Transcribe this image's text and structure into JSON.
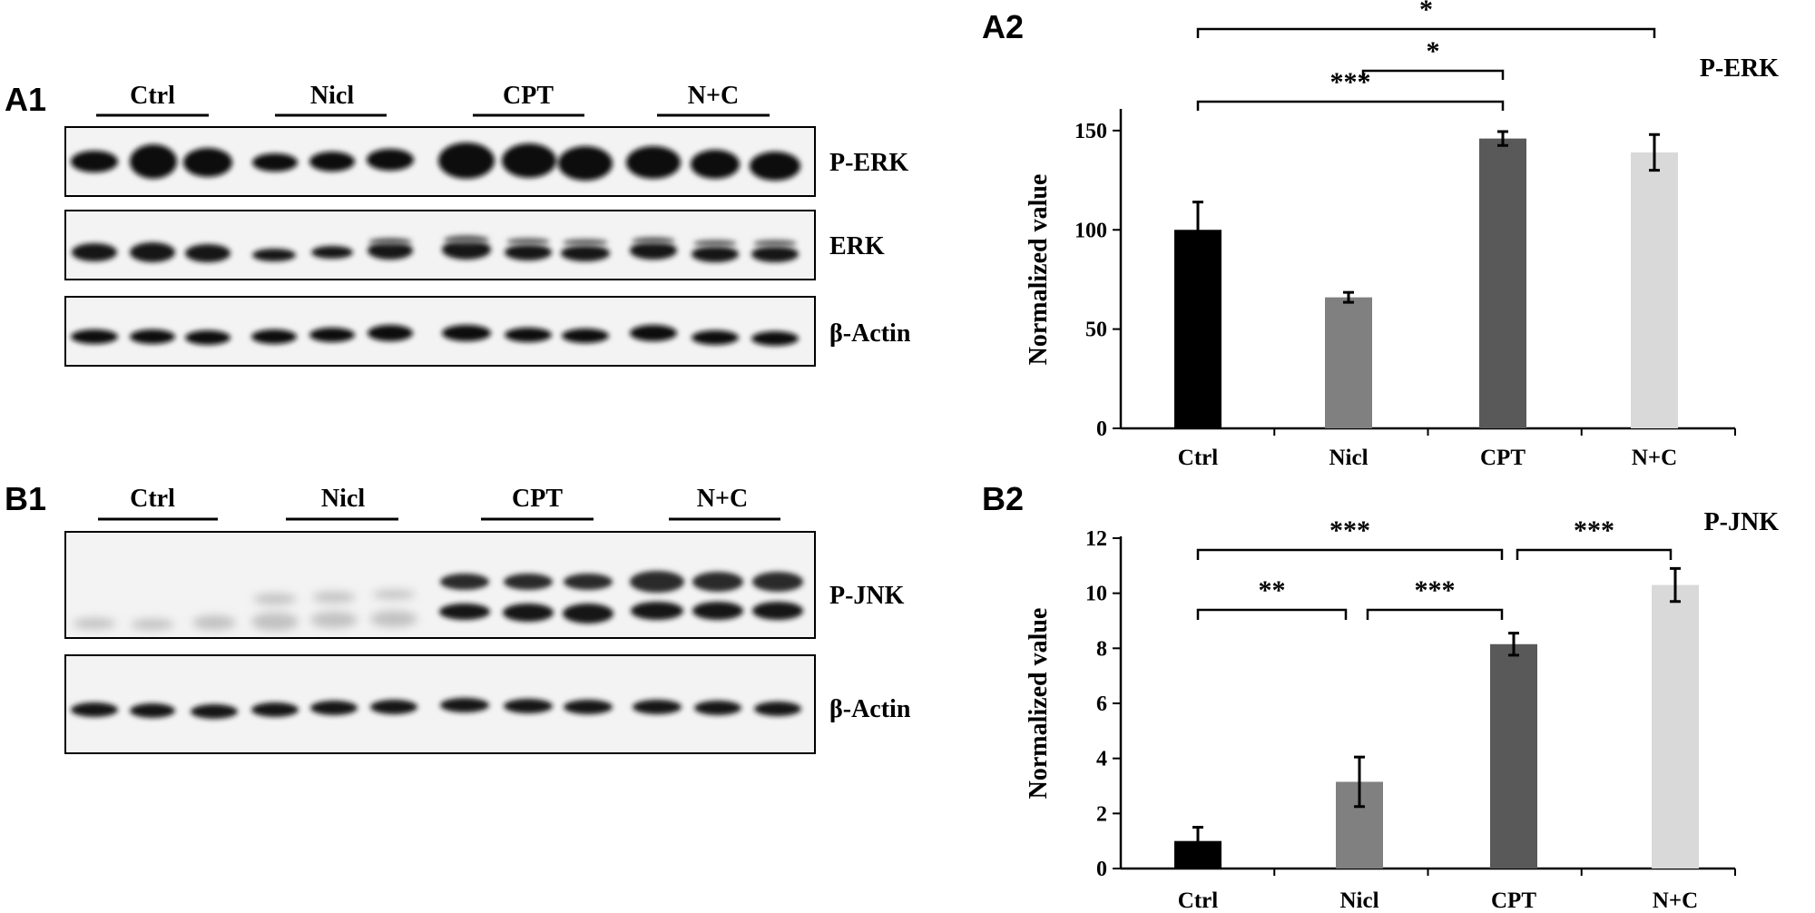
{
  "panels": {
    "a1": "A1",
    "a2": "A2",
    "b1": "B1",
    "b2": "B2"
  },
  "blots": {
    "group_labels": [
      "Ctrl",
      "Nicl",
      "CPT",
      "N+C"
    ],
    "a1_bands": [
      "P-ERK",
      "ERK",
      "β-Actin"
    ],
    "b1_bands": [
      "P-JNK",
      "β-Actin"
    ]
  },
  "colors": {
    "Ctrl": "#000000",
    "Nicl": "#808080",
    "CPT": "#595959",
    "N+C": "#d9d9d9"
  },
  "chart_data": [
    {
      "type": "bar",
      "title": "P-ERK",
      "ylabel": "Normalized value",
      "xlabel": "",
      "categories": [
        "Ctrl",
        "Nicl",
        "CPT",
        "N+C"
      ],
      "values": [
        100,
        66,
        146,
        139
      ],
      "errors": [
        14,
        2.5,
        3.5,
        9
      ],
      "ylim": [
        0,
        160
      ],
      "yticks": [
        0,
        50,
        100,
        150
      ],
      "significance": [
        {
          "from": "Nicl",
          "to": "CPT",
          "label": "***"
        },
        {
          "from": "Ctrl",
          "to": "CPT",
          "label": "*"
        },
        {
          "from": "Ctrl",
          "to": "N+C",
          "label": "*"
        }
      ],
      "grid": false,
      "legend": "none"
    },
    {
      "type": "bar",
      "title": "P-JNK",
      "ylabel": "Normalized value",
      "xlabel": "",
      "categories": [
        "Ctrl",
        "Nicl",
        "CPT",
        "N+C"
      ],
      "values": [
        1,
        3.15,
        8.15,
        10.3
      ],
      "errors": [
        0.5,
        0.9,
        0.4,
        0.6
      ],
      "ylim": [
        0,
        12
      ],
      "yticks": [
        0,
        2,
        4,
        6,
        8,
        10,
        12
      ],
      "significance": [
        {
          "from": "Ctrl",
          "to": "Nicl",
          "label": "**"
        },
        {
          "from": "Nicl",
          "to": "CPT",
          "label": "***"
        },
        {
          "from": "Ctrl",
          "to": "CPT",
          "label": "***"
        },
        {
          "from": "CPT",
          "to": "N+C",
          "label": "***"
        }
      ],
      "grid": false,
      "legend": "none"
    }
  ]
}
